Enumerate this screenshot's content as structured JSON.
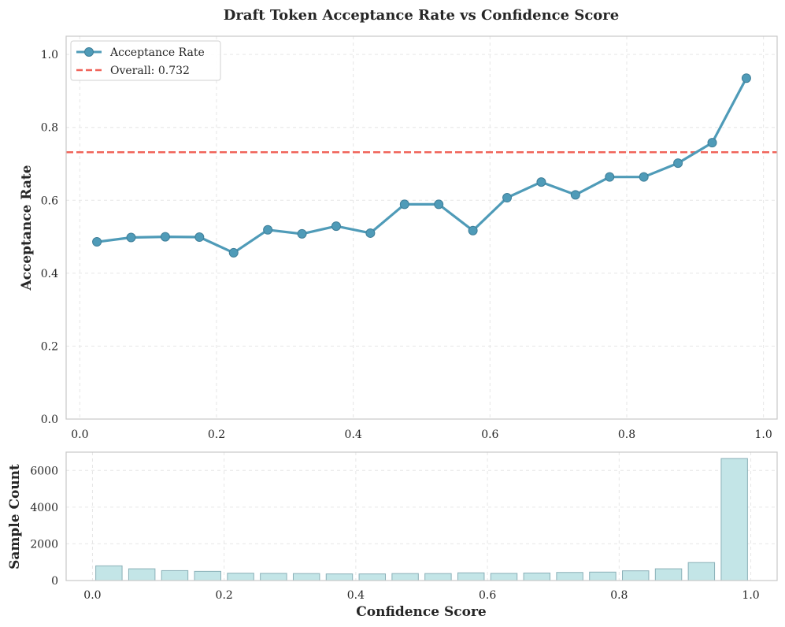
{
  "title": "Draft Token Acceptance Rate vs Confidence Score",
  "colors": {
    "line": "#4f9bb8",
    "overall": "#f0645a",
    "bar_fill": "#c3e5e7",
    "bar_edge": "#8ab0b8"
  },
  "chart_data": [
    {
      "type": "line",
      "ylabel": "Acceptance Rate",
      "xlabel": "",
      "xlim": [
        -0.02,
        1.02
      ],
      "ylim": [
        0,
        1.05
      ],
      "xticks": [
        0.0,
        0.2,
        0.4,
        0.6,
        0.8,
        1.0
      ],
      "xtick_labels": [
        "0.0",
        "0.2",
        "0.4",
        "0.6",
        "0.8",
        "1.0"
      ],
      "yticks": [
        0.0,
        0.2,
        0.4,
        0.6,
        0.8,
        1.0
      ],
      "ytick_labels": [
        "0.0",
        "0.2",
        "0.4",
        "0.6",
        "0.8",
        "1.0"
      ],
      "grid": true,
      "legend_position": "top-left",
      "series": [
        {
          "name": "Acceptance Rate",
          "x": [
            0.025,
            0.075,
            0.125,
            0.175,
            0.225,
            0.275,
            0.325,
            0.375,
            0.425,
            0.475,
            0.525,
            0.575,
            0.625,
            0.675,
            0.725,
            0.775,
            0.825,
            0.875,
            0.925,
            0.975
          ],
          "y": [
            0.486,
            0.498,
            0.5,
            0.499,
            0.456,
            0.519,
            0.508,
            0.529,
            0.51,
            0.589,
            0.589,
            0.517,
            0.607,
            0.65,
            0.615,
            0.664,
            0.664,
            0.702,
            0.758,
            0.935
          ]
        }
      ],
      "reference_line": {
        "name": "Overall: 0.732",
        "y": 0.732
      }
    },
    {
      "type": "bar",
      "ylabel": "Sample Count",
      "xlabel": "Confidence Score",
      "xlim": [
        -0.04,
        1.04
      ],
      "ylim": [
        0,
        7000
      ],
      "xticks": [
        0.0,
        0.2,
        0.4,
        0.6,
        0.8,
        1.0
      ],
      "xtick_labels": [
        "0.0",
        "0.2",
        "0.4",
        "0.6",
        "0.8",
        "1.0"
      ],
      "yticks": [
        0,
        2000,
        4000,
        6000
      ],
      "ytick_labels": [
        "0",
        "2000",
        "4000",
        "6000"
      ],
      "grid": true,
      "bar_width": 0.04,
      "x": [
        0.025,
        0.075,
        0.125,
        0.175,
        0.225,
        0.275,
        0.325,
        0.375,
        0.425,
        0.475,
        0.525,
        0.575,
        0.625,
        0.675,
        0.725,
        0.775,
        0.825,
        0.875,
        0.925,
        0.975
      ],
      "values": [
        800,
        640,
        540,
        500,
        400,
        390,
        380,
        360,
        360,
        380,
        380,
        420,
        390,
        410,
        440,
        460,
        530,
        640,
        980,
        6650
      ]
    }
  ]
}
